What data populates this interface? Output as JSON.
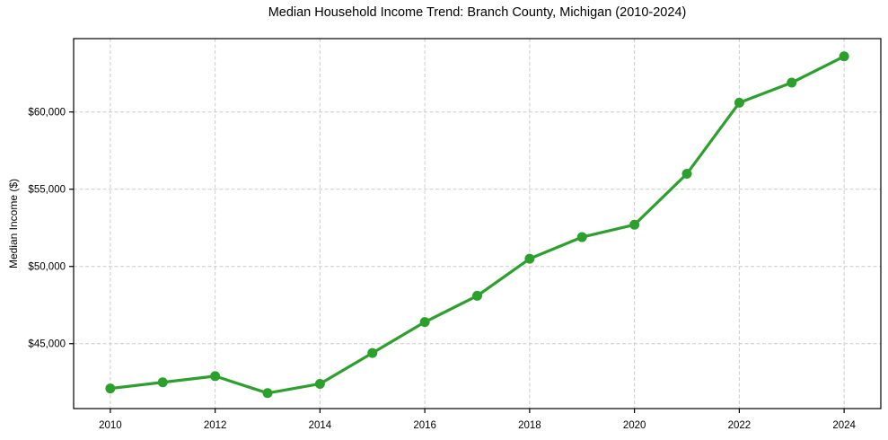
{
  "chart_data": {
    "type": "line",
    "title": "Median Household Income Trend: Branch County, Michigan (2010-2024)",
    "xlabel": "",
    "ylabel": "Median Income ($)",
    "x": [
      2010,
      2011,
      2012,
      2013,
      2014,
      2015,
      2016,
      2017,
      2018,
      2019,
      2020,
      2021,
      2022,
      2023,
      2024
    ],
    "values": [
      42100,
      42500,
      42900,
      41800,
      42400,
      44400,
      46400,
      48100,
      50500,
      51900,
      52700,
      56000,
      60600,
      61900,
      63600
    ],
    "xlim": [
      2009.3,
      2024.7
    ],
    "ylim": [
      40800,
      64750
    ],
    "xticks": {
      "values": [
        2010,
        2012,
        2014,
        2016,
        2018,
        2020,
        2022,
        2024
      ],
      "labels": [
        "2010",
        "2012",
        "2014",
        "2016",
        "2018",
        "2020",
        "2022",
        "2024"
      ]
    },
    "yticks": {
      "values": [
        45000,
        50000,
        55000,
        60000
      ],
      "labels": [
        "$45,000",
        "$50,000",
        "$55,000",
        "$60,000"
      ]
    },
    "grid": {
      "visible": true,
      "style": "dashed",
      "color": "#cccccc"
    },
    "legend_position": "none",
    "line_color": "#2ca02c",
    "marker": "circle",
    "frame_color": "#000000",
    "background_color": "#ffffff"
  }
}
